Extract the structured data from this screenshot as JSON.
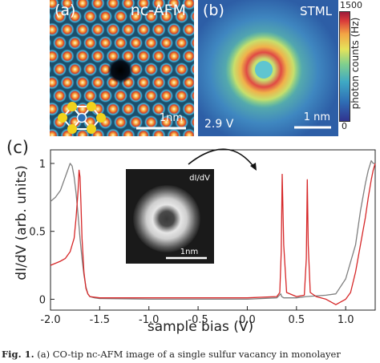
{
  "panel_a": {
    "label": "(a)",
    "title": "nc-AFM",
    "scalebar": "1nm"
  },
  "panel_b": {
    "label": "(b)",
    "title": "STML",
    "voltage": "2.9 V",
    "scalebar": "1 nm",
    "colorbar": {
      "label": "photon counts (Hz)",
      "max": "1500",
      "min": "0"
    }
  },
  "panel_c": {
    "label": "(c)",
    "inset": {
      "label": "dI/dV",
      "scalebar": "1nm"
    }
  },
  "caption": {
    "prefix": "Fig. 1.",
    "text": "(a) CO-tip nc-AFM image of a single sulfur vacancy in monolayer"
  },
  "chart_data": {
    "type": "line",
    "xlabel": "sample bias (V)",
    "ylabel": "dI/dV (arb. units)",
    "xlim": [
      -2.0,
      1.3
    ],
    "ylim": [
      -0.08,
      1.1
    ],
    "xticks": [
      "-2.0",
      "-1.5",
      "-1.0",
      "-0.5",
      "0.0",
      "0.5",
      "1.0"
    ],
    "yticks": [
      "0",
      "0.5",
      "1"
    ],
    "colors": {
      "red": "#d62728",
      "gray": "#7f7f7f"
    },
    "series": [
      {
        "color": "#7f7f7f",
        "x": [
          -2.0,
          -1.95,
          -1.9,
          -1.85,
          -1.8,
          -1.78,
          -1.76,
          -1.74,
          -1.72,
          -1.7,
          -1.68,
          -1.66,
          -1.64,
          -1.62,
          -1.6,
          -1.55,
          -1.5,
          -1.0,
          -0.5,
          0.0,
          0.3,
          0.34,
          0.35,
          0.37,
          0.4,
          0.5,
          0.6,
          0.8,
          0.9,
          1.0,
          1.1,
          1.15,
          1.2,
          1.23,
          1.26,
          1.28,
          1.3
        ],
        "y": [
          0.72,
          0.75,
          0.8,
          0.9,
          1.0,
          0.98,
          0.9,
          0.78,
          0.62,
          0.45,
          0.3,
          0.18,
          0.09,
          0.04,
          0.02,
          0.01,
          0.005,
          0.0,
          0.0,
          0.0,
          0.01,
          0.04,
          0.02,
          0.01,
          0.01,
          0.01,
          0.02,
          0.03,
          0.04,
          0.15,
          0.4,
          0.65,
          0.85,
          0.95,
          1.02,
          1.0,
          1.0
        ]
      },
      {
        "color": "#d62728",
        "x": [
          -2.0,
          -1.9,
          -1.85,
          -1.8,
          -1.76,
          -1.74,
          -1.72,
          -1.71,
          -1.7,
          -1.69,
          -1.68,
          -1.66,
          -1.64,
          -1.62,
          -1.6,
          -1.5,
          -1.0,
          -0.5,
          0.0,
          0.3,
          0.33,
          0.345,
          0.355,
          0.37,
          0.4,
          0.5,
          0.58,
          0.6,
          0.61,
          0.62,
          0.64,
          0.7,
          0.8,
          0.85,
          0.9,
          0.95,
          1.0,
          1.05,
          1.1,
          1.15,
          1.2,
          1.23,
          1.26,
          1.28,
          1.3
        ],
        "y": [
          0.25,
          0.28,
          0.3,
          0.35,
          0.45,
          0.6,
          0.8,
          0.95,
          0.9,
          0.7,
          0.45,
          0.2,
          0.08,
          0.04,
          0.02,
          0.01,
          0.01,
          0.01,
          0.01,
          0.02,
          0.05,
          0.35,
          0.92,
          0.4,
          0.05,
          0.02,
          0.03,
          0.3,
          0.88,
          0.4,
          0.05,
          0.02,
          0.0,
          -0.02,
          -0.04,
          -0.02,
          0.0,
          0.05,
          0.2,
          0.4,
          0.6,
          0.75,
          0.88,
          0.95,
          1.0
        ]
      }
    ]
  }
}
